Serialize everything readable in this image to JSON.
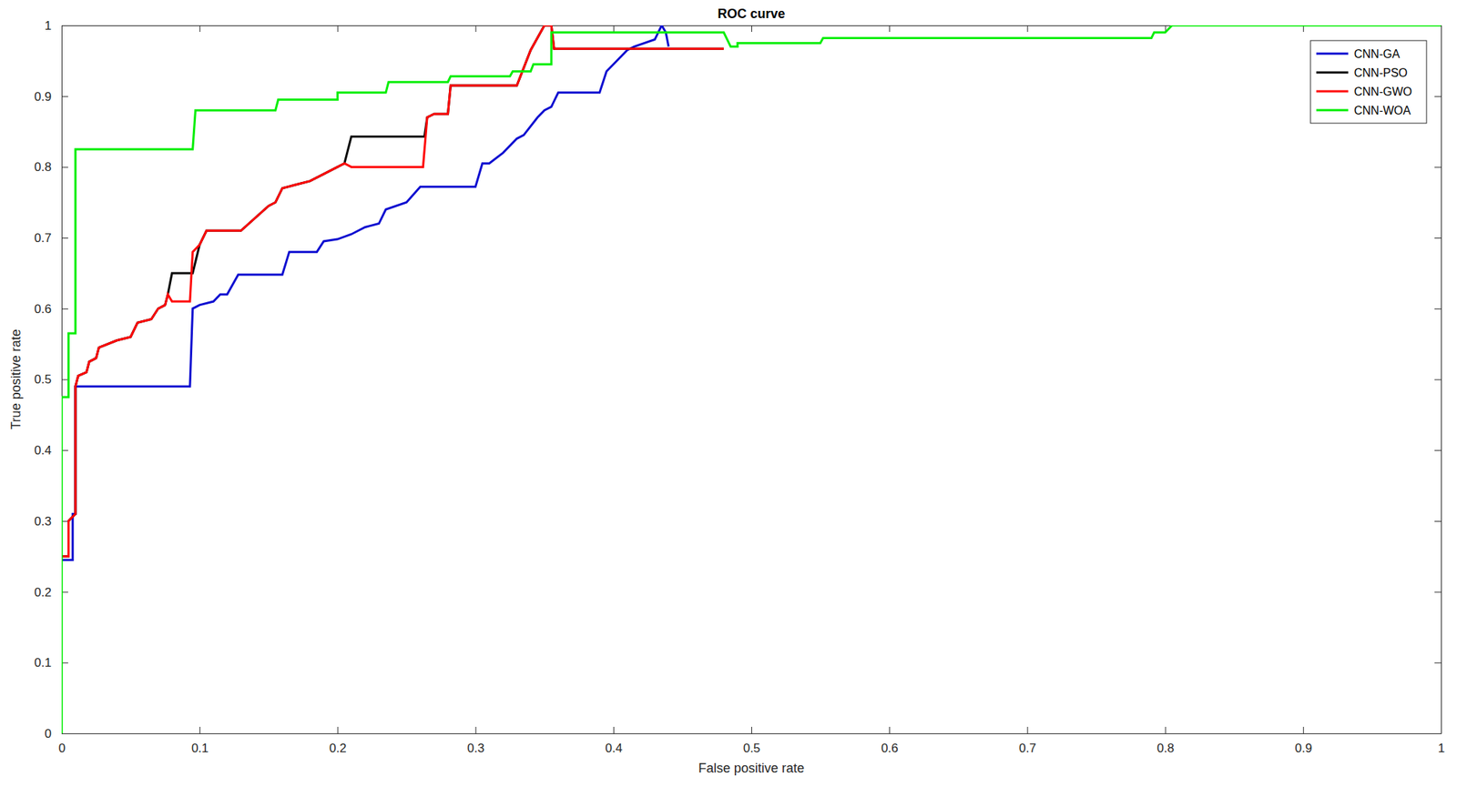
{
  "chart_data": {
    "type": "line",
    "title": "ROC curve",
    "x_label": "False positive rate",
    "y_label": "True positive rate",
    "xlim": [
      0,
      1
    ],
    "ylim": [
      0,
      1
    ],
    "xticks": [
      0,
      0.1,
      0.2,
      0.3,
      0.4,
      0.5,
      0.6,
      0.7,
      0.8,
      0.9,
      1
    ],
    "yticks": [
      0,
      0.1,
      0.2,
      0.3,
      0.4,
      0.5,
      0.6,
      0.7,
      0.8,
      0.9,
      1
    ],
    "grid": false,
    "legend": "upper-right",
    "series": [
      {
        "name": "CNN-GA",
        "color": "#0b0bd0",
        "x": [
          0,
          0.008,
          0.008,
          0.01,
          0.01,
          0.093,
          0.095,
          0.1,
          0.11,
          0.115,
          0.12,
          0.128,
          0.16,
          0.165,
          0.185,
          0.19,
          0.2,
          0.21,
          0.22,
          0.23,
          0.235,
          0.25,
          0.26,
          0.3,
          0.305,
          0.31,
          0.32,
          0.33,
          0.335,
          0.345,
          0.35,
          0.355,
          0.36,
          0.39,
          0.395,
          0.4,
          0.41,
          0.415,
          0.43,
          0.435,
          0.438,
          0.44
        ],
        "values": [
          0.245,
          0.245,
          0.31,
          0.31,
          0.49,
          0.49,
          0.6,
          0.605,
          0.61,
          0.62,
          0.62,
          0.648,
          0.648,
          0.68,
          0.68,
          0.695,
          0.698,
          0.705,
          0.715,
          0.72,
          0.74,
          0.75,
          0.772,
          0.772,
          0.805,
          0.805,
          0.82,
          0.84,
          0.845,
          0.87,
          0.88,
          0.885,
          0.905,
          0.905,
          0.935,
          0.945,
          0.965,
          0.97,
          0.98,
          1,
          0.99,
          0.97
        ]
      },
      {
        "name": "CNN-PSO",
        "color": "#000000",
        "x": [
          0,
          0.005,
          0.005,
          0.01,
          0.01,
          0.012,
          0.018,
          0.02,
          0.025,
          0.027,
          0.04,
          0.05,
          0.055,
          0.065,
          0.07,
          0.075,
          0.077,
          0.08,
          0.095,
          0.1,
          0.105,
          0.13,
          0.15,
          0.155,
          0.16,
          0.17,
          0.18,
          0.19,
          0.2,
          0.205,
          0.21,
          0.263,
          0.265,
          0.27,
          0.28,
          0.282,
          0.33,
          0.34,
          0.35,
          0.355,
          0.357,
          0.48
        ],
        "values": [
          0.25,
          0.25,
          0.3,
          0.31,
          0.49,
          0.505,
          0.51,
          0.525,
          0.53,
          0.545,
          0.555,
          0.56,
          0.58,
          0.585,
          0.6,
          0.605,
          0.62,
          0.65,
          0.65,
          0.69,
          0.71,
          0.71,
          0.745,
          0.75,
          0.77,
          0.775,
          0.78,
          0.79,
          0.8,
          0.805,
          0.843,
          0.843,
          0.87,
          0.875,
          0.875,
          0.915,
          0.915,
          0.965,
          1,
          1,
          0.967,
          0.967
        ]
      },
      {
        "name": "CNN-GWO",
        "color": "#ff0000",
        "x": [
          0,
          0.005,
          0.005,
          0.01,
          0.01,
          0.012,
          0.018,
          0.02,
          0.025,
          0.027,
          0.04,
          0.05,
          0.055,
          0.065,
          0.07,
          0.075,
          0.077,
          0.08,
          0.093,
          0.095,
          0.1,
          0.105,
          0.13,
          0.15,
          0.155,
          0.16,
          0.17,
          0.18,
          0.19,
          0.2,
          0.205,
          0.21,
          0.262,
          0.265,
          0.27,
          0.28,
          0.282,
          0.33,
          0.34,
          0.35,
          0.355,
          0.357,
          0.48
        ],
        "values": [
          0.25,
          0.25,
          0.3,
          0.31,
          0.49,
          0.505,
          0.51,
          0.525,
          0.53,
          0.545,
          0.555,
          0.56,
          0.58,
          0.585,
          0.6,
          0.605,
          0.62,
          0.61,
          0.61,
          0.68,
          0.69,
          0.71,
          0.71,
          0.745,
          0.75,
          0.77,
          0.775,
          0.78,
          0.79,
          0.8,
          0.805,
          0.8,
          0.8,
          0.87,
          0.875,
          0.875,
          0.915,
          0.915,
          0.965,
          1,
          1,
          0.967,
          0.967
        ]
      },
      {
        "name": "CNN-WOA",
        "color": "#00ee00",
        "x": [
          0,
          0,
          0.005,
          0.005,
          0.01,
          0.01,
          0.095,
          0.097,
          0.155,
          0.157,
          0.2,
          0.2,
          0.235,
          0.237,
          0.28,
          0.282,
          0.325,
          0.327,
          0.34,
          0.342,
          0.355,
          0.355,
          0.48,
          0.485,
          0.49,
          0.49,
          0.55,
          0.552,
          0.79,
          0.792,
          0.8,
          0.805,
          1
        ],
        "values": [
          0,
          0.475,
          0.475,
          0.565,
          0.565,
          0.825,
          0.825,
          0.88,
          0.88,
          0.895,
          0.895,
          0.905,
          0.905,
          0.92,
          0.92,
          0.928,
          0.928,
          0.935,
          0.935,
          0.945,
          0.945,
          0.99,
          0.99,
          0.97,
          0.97,
          0.975,
          0.975,
          0.982,
          0.982,
          0.99,
          0.99,
          1,
          1
        ]
      }
    ]
  }
}
